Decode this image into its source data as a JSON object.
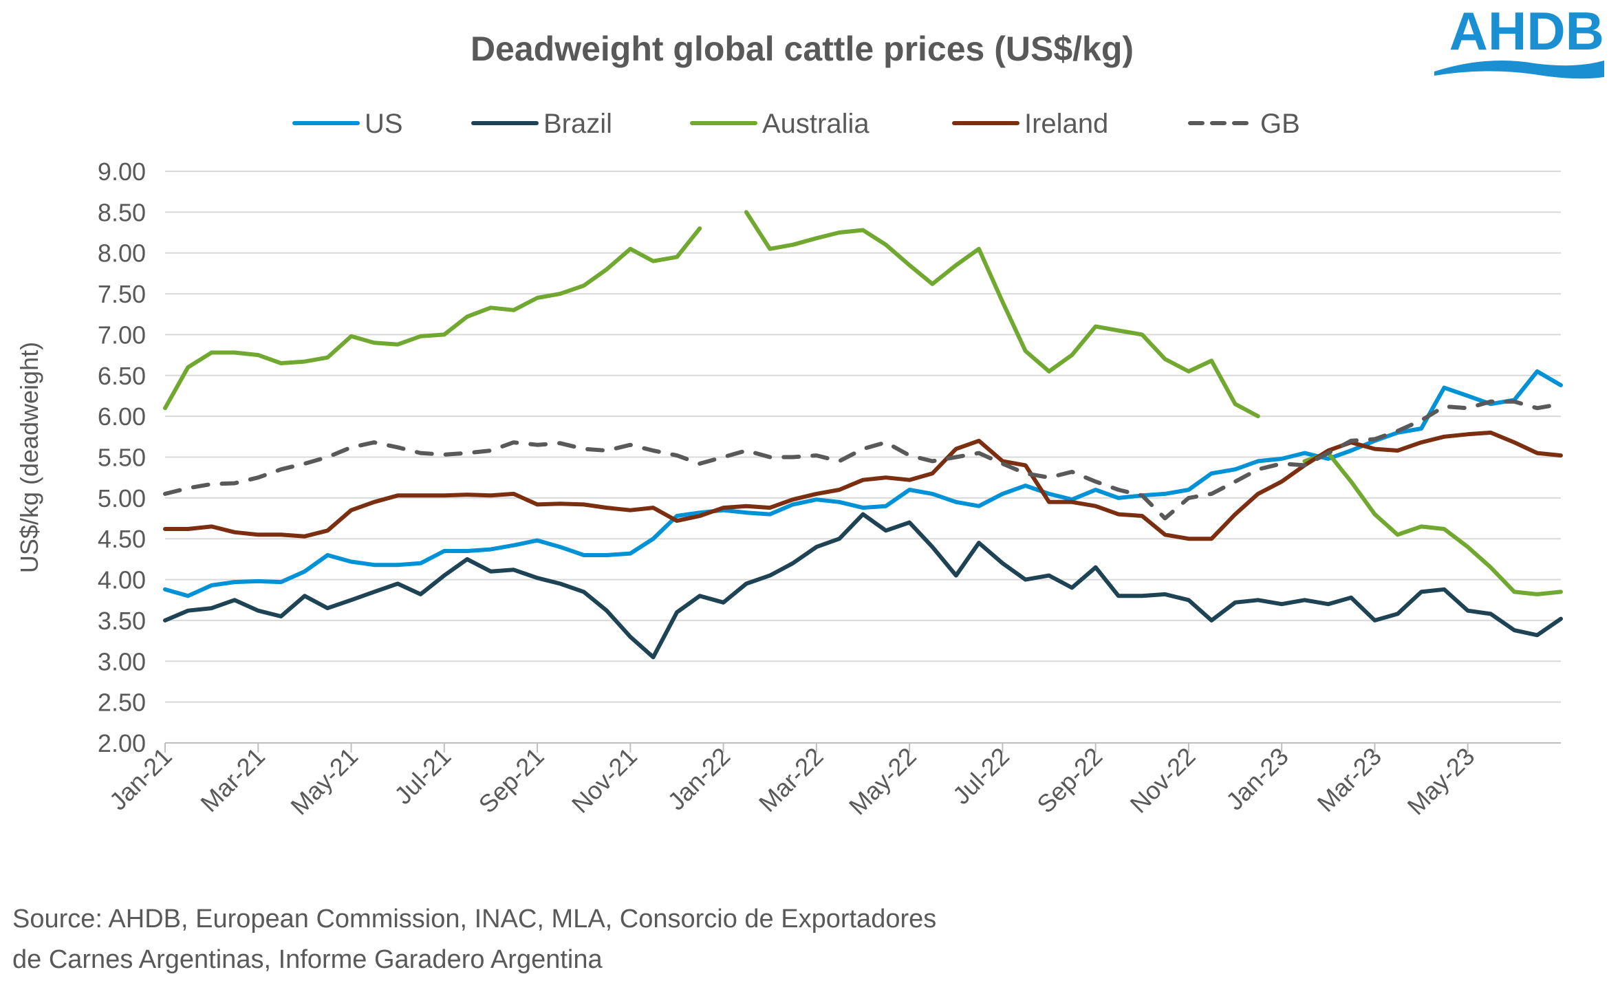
{
  "logo": {
    "text": "AHDB"
  },
  "chart_data": {
    "type": "line",
    "title": "Deadweight global cattle prices (US$/kg)",
    "xlabel": "",
    "ylabel": "US$/kg (deadweight)",
    "ylim": [
      2.0,
      9.0
    ],
    "yticks": [
      "2.00",
      "2.50",
      "3.00",
      "3.50",
      "4.00",
      "4.50",
      "5.00",
      "5.50",
      "6.00",
      "6.50",
      "7.00",
      "7.50",
      "8.00",
      "8.50",
      "9.00"
    ],
    "xlim": [
      "2021-01-01",
      "2023-07-01"
    ],
    "xticks": [
      {
        "date": "2021-01-01",
        "label": "Jan-21"
      },
      {
        "date": "2021-03-01",
        "label": "Mar-21"
      },
      {
        "date": "2021-05-01",
        "label": "May-21"
      },
      {
        "date": "2021-07-01",
        "label": "Jul-21"
      },
      {
        "date": "2021-09-01",
        "label": "Sep-21"
      },
      {
        "date": "2021-11-01",
        "label": "Nov-21"
      },
      {
        "date": "2022-01-01",
        "label": "Jan-22"
      },
      {
        "date": "2022-03-01",
        "label": "Mar-22"
      },
      {
        "date": "2022-05-01",
        "label": "May-22"
      },
      {
        "date": "2022-07-01",
        "label": "Jul-22"
      },
      {
        "date": "2022-09-01",
        "label": "Sep-22"
      },
      {
        "date": "2022-11-01",
        "label": "Nov-22"
      },
      {
        "date": "2023-01-01",
        "label": "Jan-23"
      },
      {
        "date": "2023-03-01",
        "label": "Mar-23"
      },
      {
        "date": "2023-05-01",
        "label": "May-23"
      }
    ],
    "grid": "horizontal",
    "legend": "top",
    "x": [
      "2021-01-01",
      "2021-01-16",
      "2021-02-01",
      "2021-02-16",
      "2021-03-01",
      "2021-03-16",
      "2021-04-01",
      "2021-04-16",
      "2021-05-01",
      "2021-05-16",
      "2021-06-01",
      "2021-06-16",
      "2021-07-01",
      "2021-07-16",
      "2021-08-01",
      "2021-08-16",
      "2021-09-01",
      "2021-09-16",
      "2021-10-01",
      "2021-10-16",
      "2021-11-01",
      "2021-11-16",
      "2021-12-01",
      "2021-12-16",
      "2022-01-01",
      "2022-01-16",
      "2022-02-01",
      "2022-02-16",
      "2022-03-01",
      "2022-03-16",
      "2022-04-01",
      "2022-04-16",
      "2022-05-01",
      "2022-05-16",
      "2022-06-01",
      "2022-06-16",
      "2022-07-01",
      "2022-07-16",
      "2022-08-01",
      "2022-08-16",
      "2022-09-01",
      "2022-09-16",
      "2022-10-01",
      "2022-10-16",
      "2022-11-01",
      "2022-11-16",
      "2022-12-01",
      "2022-12-16",
      "2023-01-01",
      "2023-01-16",
      "2023-02-01",
      "2023-02-16",
      "2023-03-01",
      "2023-03-16",
      "2023-04-01",
      "2023-04-16",
      "2023-05-01",
      "2023-05-16",
      "2023-06-01",
      "2023-06-16",
      "2023-07-01"
    ],
    "series": [
      {
        "name": "US",
        "color": "#0092d6",
        "dash": false,
        "values": [
          3.88,
          3.8,
          3.93,
          3.97,
          3.98,
          3.97,
          4.1,
          4.3,
          4.22,
          4.18,
          4.18,
          4.2,
          4.35,
          4.35,
          4.37,
          4.42,
          4.48,
          4.4,
          4.3,
          4.3,
          4.32,
          4.5,
          4.78,
          4.82,
          4.85,
          4.82,
          4.8,
          4.92,
          4.98,
          4.95,
          4.88,
          4.9,
          5.1,
          5.05,
          4.95,
          4.9,
          5.05,
          5.15,
          5.05,
          4.98,
          5.1,
          5.0,
          5.03,
          5.05,
          5.1,
          5.3,
          5.35,
          5.45,
          5.48,
          5.55,
          5.48,
          5.58,
          5.7,
          5.8,
          5.85,
          6.35,
          6.25,
          6.15,
          6.2,
          6.55,
          6.38
        ]
      },
      {
        "name": "Brazil",
        "color": "#1d4354",
        "dash": false,
        "values": [
          3.5,
          3.62,
          3.65,
          3.75,
          3.62,
          3.55,
          3.8,
          3.65,
          3.75,
          3.85,
          3.95,
          3.82,
          4.05,
          4.25,
          4.1,
          4.12,
          4.02,
          3.95,
          3.85,
          3.62,
          3.3,
          3.05,
          3.6,
          3.8,
          3.72,
          3.95,
          4.05,
          4.2,
          4.4,
          4.5,
          4.8,
          4.6,
          4.7,
          4.4,
          4.05,
          4.45,
          4.2,
          4.0,
          4.05,
          3.9,
          4.15,
          3.8,
          3.8,
          3.82,
          3.75,
          3.5,
          3.72,
          3.75,
          3.7,
          3.75,
          3.7,
          3.78,
          3.5,
          3.58,
          3.85,
          3.88,
          3.62,
          3.58,
          3.38,
          3.32,
          3.52
        ]
      },
      {
        "name": "Australia",
        "color": "#70a830",
        "dash": false,
        "values": [
          6.1,
          6.6,
          6.78,
          6.78,
          6.75,
          6.65,
          6.67,
          6.72,
          6.98,
          6.9,
          6.88,
          6.98,
          7.0,
          7.22,
          7.33,
          7.3,
          7.45,
          7.5,
          7.6,
          7.8,
          8.05,
          7.9,
          7.95,
          8.3,
          null,
          8.5,
          8.05,
          8.1,
          8.18,
          8.25,
          8.28,
          8.1,
          7.85,
          7.62,
          7.85,
          8.05,
          7.4,
          6.8,
          6.55,
          6.75,
          7.1,
          7.05,
          7.0,
          6.7,
          6.55,
          6.68,
          6.15,
          6.0,
          null,
          5.45,
          5.55,
          5.2,
          4.8,
          4.55,
          4.65,
          4.62,
          4.4,
          4.15,
          3.85,
          3.82,
          3.85
        ]
      },
      {
        "name": "Ireland",
        "color": "#7b2f10",
        "dash": false,
        "values": [
          4.62,
          4.62,
          4.65,
          4.58,
          4.55,
          4.55,
          4.53,
          4.6,
          4.85,
          4.95,
          5.03,
          5.03,
          5.03,
          5.04,
          5.03,
          5.05,
          4.92,
          4.93,
          4.92,
          4.88,
          4.85,
          4.88,
          4.72,
          4.78,
          4.88,
          4.9,
          4.88,
          4.98,
          5.05,
          5.1,
          5.22,
          5.25,
          5.22,
          5.3,
          5.6,
          5.7,
          5.45,
          5.4,
          4.95,
          4.95,
          4.9,
          4.8,
          4.78,
          4.55,
          4.5,
          4.5,
          4.8,
          5.05,
          5.2,
          5.4,
          5.58,
          5.68,
          5.6,
          5.58,
          5.68,
          5.75,
          5.78,
          5.8,
          5.68,
          5.55,
          5.52
        ]
      },
      {
        "name": "GB",
        "color": "#595959",
        "dash": true,
        "values": [
          5.05,
          5.12,
          5.17,
          5.18,
          5.25,
          5.35,
          5.42,
          5.5,
          5.62,
          5.68,
          5.62,
          5.55,
          5.53,
          5.55,
          5.58,
          5.68,
          5.65,
          5.67,
          5.6,
          5.58,
          5.65,
          5.58,
          5.52,
          5.42,
          5.5,
          5.58,
          5.5,
          5.5,
          5.52,
          5.45,
          5.6,
          5.68,
          5.52,
          5.45,
          5.5,
          5.55,
          5.42,
          5.3,
          5.25,
          5.32,
          5.2,
          5.1,
          5.03,
          4.75,
          5.0,
          5.05,
          5.2,
          5.35,
          5.42,
          5.4,
          5.55,
          5.7,
          5.72,
          5.82,
          5.95,
          6.12,
          6.1,
          6.18,
          6.18,
          6.1,
          6.15
        ]
      }
    ]
  },
  "source": {
    "line1": "Source: AHDB, European Commission, INAC, MLA, Consorcio de Exportadores",
    "line2": "de Carnes Argentinas, Informe Garadero Argentina"
  }
}
